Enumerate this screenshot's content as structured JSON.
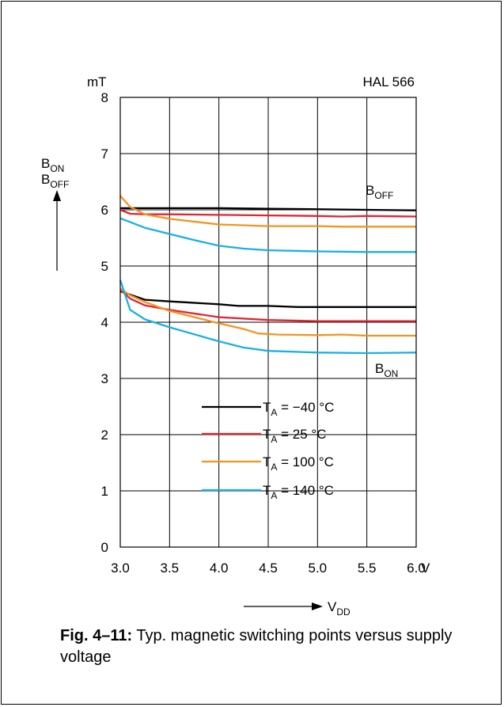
{
  "chart_data": {
    "type": "line",
    "title": "HAL 566",
    "ylabel_unit": "mT",
    "xlabel_unit": "V",
    "ylim": [
      0,
      8
    ],
    "xlim": [
      3.0,
      6.0
    ],
    "xticks": [
      "3.0",
      "3.5",
      "4.0",
      "4.5",
      "5.0",
      "5.5",
      "6.0"
    ],
    "yticks": [
      "0",
      "1",
      "2",
      "3",
      "4",
      "5",
      "6",
      "7",
      "8"
    ],
    "grid": true,
    "ylabel_lines": [
      {
        "base": "B",
        "sub": "ON"
      },
      {
        "base": "B",
        "sub": "OFF"
      }
    ],
    "xlabel": {
      "base": "V",
      "sub": "DD"
    },
    "annotations": [
      {
        "base": "B",
        "sub": "OFF"
      },
      {
        "base": "B",
        "sub": "ON"
      }
    ],
    "legend": [
      {
        "pre": "T",
        "sub": "A",
        "post": " = −40 °C",
        "color": "#000000"
      },
      {
        "pre": "T",
        "sub": "A",
        "post": " = 25 °C",
        "color": "#e52330"
      },
      {
        "pre": "T",
        "sub": "A",
        "post": " = 100 °C",
        "color": "#f39420"
      },
      {
        "pre": "T",
        "sub": "A",
        "post": " = 140 °C",
        "color": "#1aafe6"
      }
    ],
    "series": [
      {
        "group": "off",
        "temp": "-40",
        "color": "#000000",
        "x": [
          3.0,
          3.25,
          3.5,
          4.0,
          4.5,
          5.0,
          5.5,
          6.0
        ],
        "y": [
          6.03,
          6.03,
          6.03,
          6.03,
          6.02,
          6.01,
          6.0,
          5.99
        ]
      },
      {
        "group": "off",
        "temp": "25",
        "color": "#e52330",
        "x": [
          3.0,
          3.1,
          3.25,
          3.5,
          4.0,
          4.5,
          5.0,
          5.25,
          5.5,
          6.0
        ],
        "y": [
          6.0,
          5.93,
          5.92,
          5.92,
          5.91,
          5.9,
          5.89,
          5.88,
          5.89,
          5.88
        ]
      },
      {
        "group": "off",
        "temp": "100",
        "color": "#f39420",
        "x": [
          3.0,
          3.1,
          3.25,
          3.5,
          4.0,
          4.5,
          5.0,
          5.25,
          5.5,
          6.0
        ],
        "y": [
          6.25,
          6.05,
          5.92,
          5.84,
          5.74,
          5.71,
          5.71,
          5.7,
          5.7,
          5.7
        ]
      },
      {
        "group": "off",
        "temp": "140",
        "color": "#1aafe6",
        "x": [
          3.0,
          3.25,
          3.5,
          3.75,
          4.0,
          4.25,
          4.5,
          5.0,
          5.5,
          6.0
        ],
        "y": [
          5.85,
          5.68,
          5.57,
          5.46,
          5.36,
          5.31,
          5.28,
          5.26,
          5.25,
          5.25
        ]
      },
      {
        "group": "on",
        "temp": "-40",
        "color": "#000000",
        "x": [
          3.0,
          3.25,
          3.5,
          4.0,
          4.2,
          4.5,
          4.8,
          5.0,
          5.5,
          6.0
        ],
        "y": [
          4.55,
          4.4,
          4.37,
          4.32,
          4.29,
          4.29,
          4.27,
          4.27,
          4.27,
          4.27
        ]
      },
      {
        "group": "on",
        "temp": "25",
        "color": "#e52330",
        "x": [
          3.0,
          3.1,
          3.25,
          3.5,
          4.0,
          4.5,
          5.0,
          5.5,
          6.0
        ],
        "y": [
          4.58,
          4.42,
          4.3,
          4.22,
          4.09,
          4.04,
          4.02,
          4.02,
          4.02
        ]
      },
      {
        "group": "on",
        "temp": "100",
        "color": "#f39420",
        "x": [
          3.0,
          3.1,
          3.25,
          3.5,
          4.0,
          4.25,
          4.4,
          4.6,
          5.0,
          5.25,
          5.5,
          6.0
        ],
        "y": [
          4.6,
          4.48,
          4.36,
          4.2,
          3.98,
          3.88,
          3.8,
          3.78,
          3.77,
          3.78,
          3.76,
          3.76
        ]
      },
      {
        "group": "on",
        "temp": "140",
        "color": "#1aafe6",
        "x": [
          3.0,
          3.1,
          3.25,
          3.5,
          4.0,
          4.25,
          4.5,
          5.0,
          5.5,
          6.0
        ],
        "y": [
          4.75,
          4.22,
          4.05,
          3.91,
          3.66,
          3.55,
          3.49,
          3.46,
          3.45,
          3.46
        ]
      }
    ]
  },
  "caption": {
    "fig_label": "Fig. 4–11:",
    "text": " Typ. magnetic switching points versus supply voltage"
  }
}
